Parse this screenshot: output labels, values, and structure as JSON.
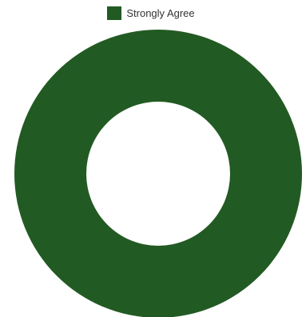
{
  "chart_data": {
    "type": "pie",
    "donut": true,
    "categories": [
      "Strongly Agree"
    ],
    "values": [
      100
    ],
    "colors": [
      "#225a23"
    ],
    "legend_position": "top"
  }
}
